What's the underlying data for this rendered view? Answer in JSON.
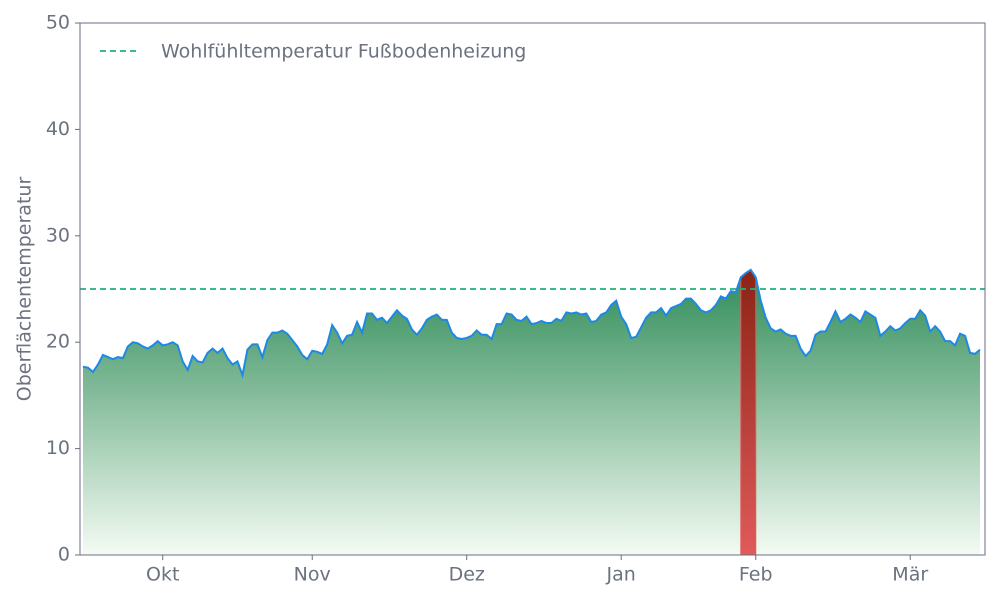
{
  "chart_data": {
    "type": "area",
    "y_label": "Oberflächentemperatur",
    "categories": [
      null,
      null,
      null,
      null,
      null,
      null,
      null,
      null,
      null,
      null,
      null,
      null,
      null,
      null,
      null,
      null,
      "Okt",
      null,
      null,
      null,
      null,
      null,
      null,
      null,
      null,
      null,
      null,
      null,
      null,
      null,
      null,
      null,
      null,
      null,
      null,
      null,
      null,
      null,
      null,
      null,
      null,
      null,
      null,
      null,
      null,
      null,
      "Nov",
      null,
      null,
      null,
      null,
      null,
      null,
      null,
      null,
      null,
      null,
      null,
      null,
      null,
      null,
      null,
      null,
      null,
      null,
      null,
      null,
      null,
      null,
      null,
      null,
      null,
      null,
      null,
      null,
      null,
      null,
      "Dez",
      null,
      null,
      null,
      null,
      null,
      null,
      null,
      null,
      null,
      null,
      null,
      null,
      null,
      null,
      null,
      null,
      null,
      null,
      null,
      null,
      null,
      null,
      null,
      null,
      null,
      null,
      null,
      null,
      null,
      null,
      "Jan",
      null,
      null,
      null,
      null,
      null,
      null,
      null,
      null,
      null,
      null,
      null,
      null,
      null,
      null,
      null,
      null,
      null,
      null,
      null,
      null,
      null,
      null,
      null,
      null,
      null,
      null,
      "Feb",
      null,
      null,
      null,
      null,
      null,
      null,
      null,
      null,
      null,
      null,
      null,
      null,
      null,
      null,
      null,
      null,
      null,
      null,
      null,
      null,
      null,
      null,
      null,
      null,
      null,
      null,
      null,
      null,
      null,
      null,
      "Mär",
      null,
      null,
      null,
      null,
      null,
      null,
      null,
      null,
      null,
      null,
      null,
      null,
      null,
      null
    ],
    "series": [
      {
        "color": "#1e88e5",
        "values": [
          17.7,
          17.6,
          17.2,
          17.9,
          18.8,
          18.6,
          18.4,
          18.6,
          18.5,
          19.6,
          20.0,
          19.9,
          19.6,
          19.4,
          19.7,
          20.1,
          19.7,
          19.8,
          20.0,
          19.7,
          18.2,
          17.4,
          18.7,
          18.2,
          18.1,
          19.0,
          19.4,
          19.0,
          19.4,
          18.5,
          17.9,
          18.2,
          16.9,
          19.3,
          19.8,
          19.8,
          18.6,
          20.2,
          20.9,
          20.9,
          21.1,
          20.8,
          20.2,
          19.6,
          18.8,
          18.4,
          19.2,
          19.1,
          18.9,
          19.8,
          21.6,
          20.9,
          19.9,
          20.6,
          20.7,
          21.9,
          20.9,
          22.7,
          22.7,
          22.1,
          22.3,
          21.8,
          22.4,
          23.0,
          22.5,
          22.2,
          21.2,
          20.7,
          21.3,
          22.1,
          22.4,
          22.6,
          22.1,
          22.1,
          20.9,
          20.4,
          20.3,
          20.4,
          20.6,
          21.1,
          20.7,
          20.7,
          20.3,
          21.7,
          21.7,
          22.7,
          22.6,
          22.1,
          22.0,
          22.4,
          21.7,
          21.8,
          22.0,
          21.8,
          21.8,
          22.2,
          22.0,
          22.8,
          22.7,
          22.8,
          22.6,
          22.7,
          21.9,
          22.0,
          22.6,
          22.8,
          23.5,
          23.9,
          22.4,
          21.7,
          20.4,
          20.5,
          21.4,
          22.3,
          22.8,
          22.8,
          23.2,
          22.5,
          23.2,
          23.4,
          23.6,
          24.1,
          24.1,
          23.6,
          23.0,
          22.8,
          23.0,
          23.5,
          24.3,
          24.1,
          24.8,
          24.7,
          26.1,
          26.5,
          26.8,
          26.1,
          23.9,
          22.3,
          21.3,
          21.0,
          21.2,
          20.8,
          20.6,
          20.6,
          19.4,
          18.7,
          19.2,
          20.7,
          21.0,
          21.0,
          21.9,
          22.9,
          21.9,
          22.2,
          22.6,
          22.3,
          21.9,
          22.9,
          22.6,
          22.3,
          20.6,
          21.0,
          21.5,
          21.1,
          21.3,
          21.8,
          22.2,
          22.2,
          23.0,
          22.5,
          21.0,
          21.5,
          21.0,
          20.1,
          20.1,
          19.7,
          20.8,
          20.6,
          19.0,
          18.9,
          19.3
        ]
      }
    ],
    "fill_colors": [
      "#2e8b57",
      "#f4fbf3"
    ],
    "above_colors": [
      "#8b2416",
      "#e05a5a"
    ],
    "threshold": {
      "value": 25,
      "label": "Wohlfühltemperatur Fußbodenheizung",
      "color": "#20b07a"
    },
    "ylim": [
      0,
      50
    ],
    "yticks": [
      0,
      10,
      20,
      30,
      40,
      50
    ],
    "legend": "upper left"
  }
}
